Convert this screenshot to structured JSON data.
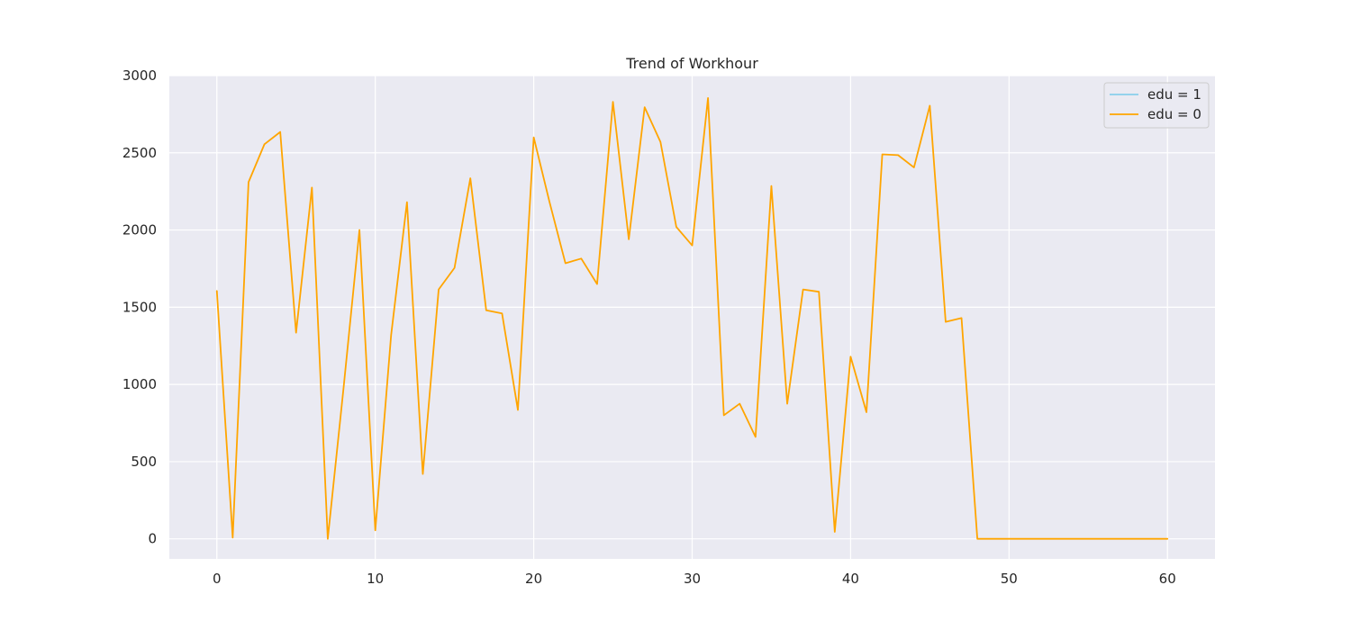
{
  "chart_data": {
    "type": "line",
    "title": "Trend of Workhour",
    "xlabel": "",
    "ylabel": "",
    "xlim": [
      -3,
      63
    ],
    "ylim": [
      -130,
      3000
    ],
    "x_ticks": [
      0,
      10,
      20,
      30,
      40,
      50,
      60
    ],
    "y_ticks": [
      0,
      500,
      1000,
      1500,
      2000,
      2500,
      3000
    ],
    "grid": true,
    "legend_position": "top-right",
    "series": [
      {
        "name": "edu = 1",
        "color": "#87ceeb",
        "x": [],
        "values": []
      },
      {
        "name": "edu = 0",
        "color": "#ffa500",
        "x": [
          0,
          1,
          2,
          3,
          4,
          5,
          6,
          7,
          8,
          9,
          10,
          11,
          12,
          13,
          14,
          15,
          16,
          17,
          18,
          19,
          20,
          21,
          22,
          23,
          24,
          25,
          26,
          27,
          28,
          29,
          30,
          31,
          32,
          33,
          34,
          35,
          36,
          37,
          38,
          39,
          40,
          41,
          42,
          43,
          44,
          45,
          46,
          47,
          48,
          49,
          50,
          51,
          52,
          53,
          54,
          55,
          56,
          57,
          58,
          59,
          60
        ],
        "values": [
          1605,
          8,
          2310,
          2555,
          2635,
          1335,
          2275,
          0,
          980,
          2000,
          55,
          1320,
          2180,
          420,
          1615,
          1755,
          2335,
          1480,
          1460,
          835,
          2600,
          2180,
          1785,
          1815,
          1650,
          2830,
          1940,
          2795,
          2570,
          2020,
          1900,
          2855,
          800,
          875,
          660,
          2285,
          875,
          1615,
          1600,
          45,
          1180,
          820,
          2490,
          2485,
          2405,
          2805,
          1405,
          1430,
          0,
          0,
          0,
          0,
          0,
          0,
          0,
          0,
          0,
          0,
          0,
          0,
          0
        ]
      }
    ]
  }
}
